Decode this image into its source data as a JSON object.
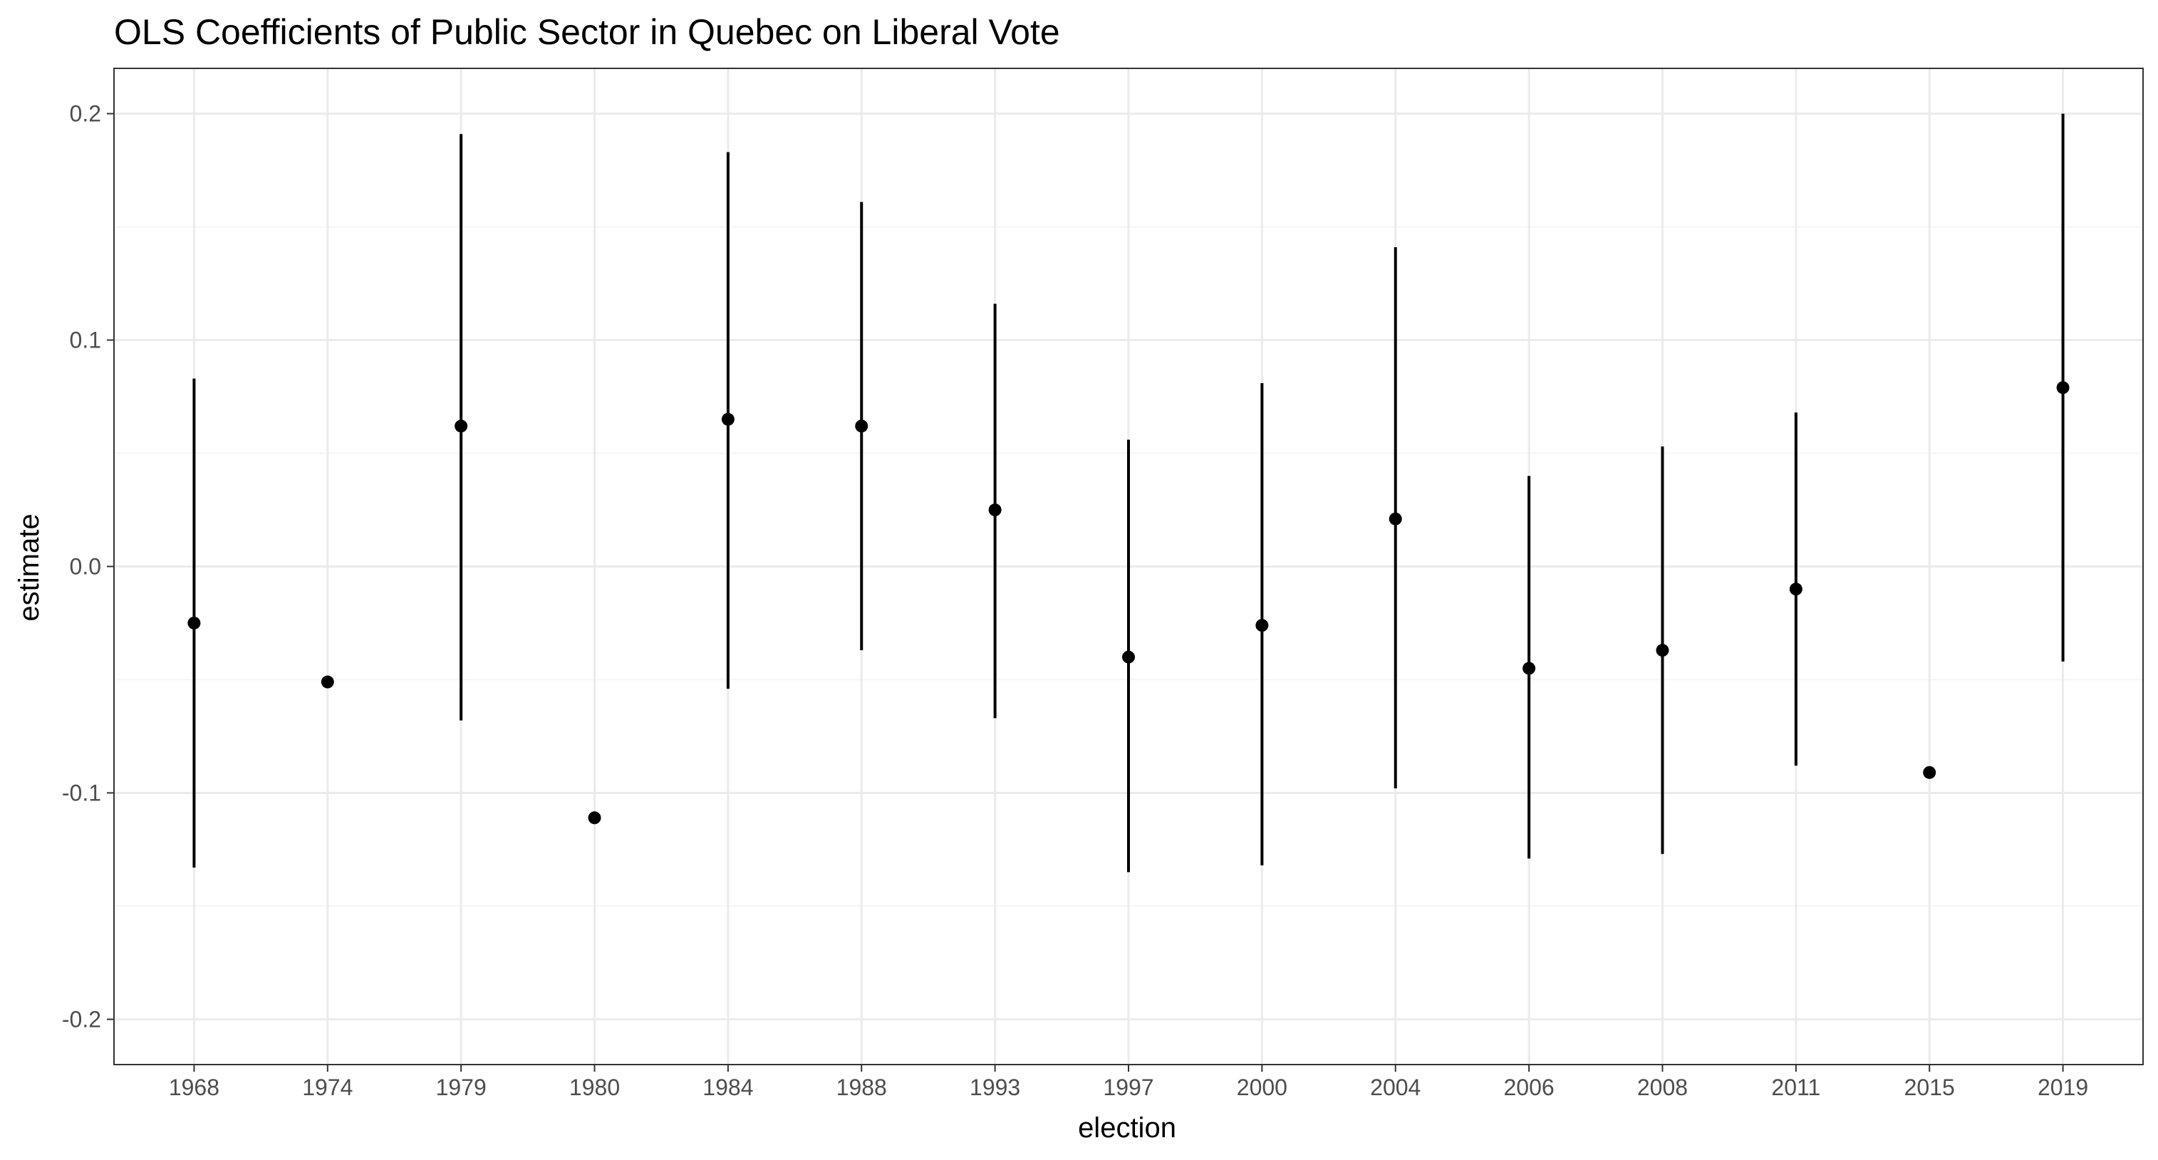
{
  "chart_data": {
    "type": "pointrange",
    "title": "OLS Coefficients of Public Sector in Quebec on Liberal Vote",
    "xlabel": "election",
    "ylabel": "estimate",
    "ylim": [
      -0.22,
      0.22
    ],
    "y_ticks": [
      -0.2,
      -0.1,
      0.0,
      0.1,
      0.2
    ],
    "y_tick_labels": [
      "-0.2",
      "-0.1",
      "0.0",
      "0.1",
      "0.2"
    ],
    "grid": true,
    "categories": [
      "1968",
      "1974",
      "1979",
      "1980",
      "1984",
      "1988",
      "1993",
      "1997",
      "2000",
      "2004",
      "2006",
      "2008",
      "2011",
      "2015",
      "2019"
    ],
    "estimate": [
      -0.025,
      -0.051,
      0.062,
      -0.111,
      0.065,
      0.062,
      0.025,
      -0.04,
      -0.026,
      0.021,
      -0.045,
      -0.037,
      -0.01,
      -0.091,
      0.079
    ],
    "lower": [
      -0.133,
      null,
      -0.068,
      null,
      -0.054,
      -0.037,
      -0.067,
      -0.135,
      -0.132,
      -0.098,
      -0.129,
      -0.127,
      -0.088,
      null,
      -0.042
    ],
    "upper": [
      0.083,
      null,
      0.191,
      null,
      0.183,
      0.161,
      0.116,
      0.056,
      0.081,
      0.141,
      0.04,
      0.053,
      0.068,
      null,
      0.2
    ],
    "colors": {
      "point": "#000000",
      "panel_border": "#333333",
      "grid_major": "#ebebeb",
      "grid_minor": "#f5f5f5"
    }
  }
}
